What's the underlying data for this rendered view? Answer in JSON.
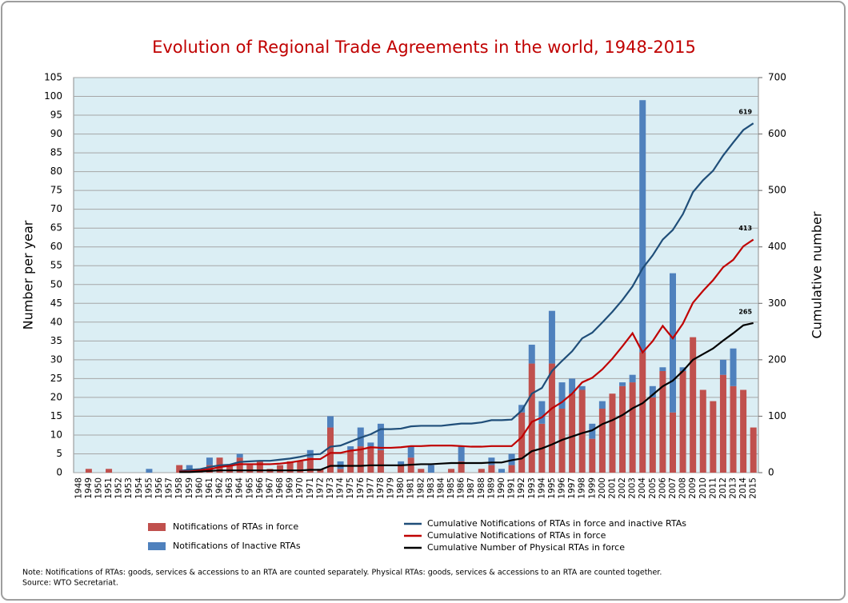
{
  "chart_data": {
    "type": "combo",
    "title": "Evolution of Regional Trade Agreements in the world, 1948-2015",
    "y_label": "Number per year",
    "y2_label": "Cumulative number",
    "categories": [
      "1948",
      "1949",
      "1950",
      "1951",
      "1952",
      "1953",
      "1954",
      "1955",
      "1956",
      "1957",
      "1958",
      "1959",
      "1960",
      "1961",
      "1962",
      "1963",
      "1964",
      "1965",
      "1966",
      "1967",
      "1968",
      "1969",
      "1970",
      "1971",
      "1972",
      "1973",
      "1974",
      "1975",
      "1976",
      "1977",
      "1978",
      "1979",
      "1980",
      "1981",
      "1982",
      "1983",
      "1984",
      "1985",
      "1986",
      "1987",
      "1988",
      "1989",
      "1990",
      "1991",
      "1992",
      "1993",
      "1994",
      "1995",
      "1996",
      "1997",
      "1998",
      "1999",
      "2000",
      "2001",
      "2002",
      "2003",
      "2004",
      "2005",
      "2006",
      "2007",
      "2008",
      "2009",
      "2010",
      "2011",
      "2012",
      "2013",
      "2014",
      "2015"
    ],
    "series": [
      {
        "name": "Notifications of RTAs in force",
        "type": "bar",
        "axis": "y",
        "color": "#c0504d",
        "values": [
          0,
          1,
          0,
          1,
          0,
          0,
          0,
          0,
          0,
          0,
          2,
          0,
          1,
          2,
          4,
          2,
          4,
          2,
          3,
          1,
          2,
          3,
          3,
          4,
          1,
          12,
          1,
          6,
          7,
          7,
          6,
          0,
          2,
          4,
          1,
          0,
          0,
          1,
          3,
          0,
          1,
          2,
          0,
          2,
          16,
          29,
          13,
          29,
          17,
          21,
          22,
          9,
          17,
          21,
          23,
          24,
          32,
          20,
          27,
          16,
          27,
          36,
          22,
          19,
          26,
          23,
          22,
          12
        ]
      },
      {
        "name": "Notifications of Inactive RTAs",
        "type": "bar",
        "axis": "y",
        "color": "#4f81bd",
        "values": [
          0,
          0,
          0,
          0,
          0,
          0,
          0,
          1,
          0,
          0,
          0,
          2,
          0,
          2,
          0,
          0,
          1,
          0,
          0,
          0,
          0,
          0,
          0,
          2,
          0,
          3,
          2,
          1,
          5,
          1,
          7,
          0,
          1,
          3,
          0,
          2,
          0,
          0,
          4,
          0,
          0,
          2,
          1,
          3,
          2,
          5,
          6,
          14,
          7,
          4,
          1,
          4,
          2,
          0,
          1,
          2,
          67,
          3,
          1,
          37,
          1,
          0,
          0,
          0,
          4,
          10,
          0,
          0
        ]
      },
      {
        "name": "Cumulative Notifications of RTAs in force and inactive RTAs",
        "type": "line",
        "axis": "y2",
        "color": "#1f4e79",
        "data_label": "last",
        "values": [
          null,
          null,
          null,
          null,
          null,
          null,
          null,
          null,
          null,
          null,
          3,
          5,
          6,
          10,
          13,
          14,
          19,
          20,
          21,
          21,
          23,
          25,
          28,
          32,
          33,
          46,
          48,
          55,
          62,
          68,
          77,
          77,
          78,
          82,
          83,
          83,
          83,
          85,
          87,
          87,
          89,
          93,
          93,
          94,
          110,
          140,
          150,
          180,
          198,
          215,
          238,
          248,
          266,
          285,
          306,
          330,
          362,
          385,
          413,
          430,
          458,
          497,
          518,
          535,
          562,
          585,
          607,
          619
        ]
      },
      {
        "name": "Cumulative Notifications of RTAs in force",
        "type": "line",
        "axis": "y2",
        "color": "#c00000",
        "data_label": "last",
        "values": [
          null,
          null,
          null,
          null,
          null,
          null,
          null,
          null,
          null,
          null,
          2,
          2,
          4,
          6,
          10,
          12,
          15,
          15,
          15,
          15,
          16,
          18,
          21,
          24,
          24,
          35,
          35,
          39,
          41,
          45,
          44,
          44,
          45,
          47,
          47,
          48,
          48,
          48,
          47,
          46,
          46,
          47,
          47,
          47,
          63,
          90,
          98,
          114,
          125,
          140,
          160,
          168,
          183,
          202,
          224,
          247,
          213,
          233,
          260,
          238,
          264,
          301,
          322,
          341,
          364,
          377,
          401,
          413
        ]
      },
      {
        "name": "Cumulative Number of Physical RTAs in force",
        "type": "line",
        "axis": "y2",
        "color": "#000000",
        "data_label": "last",
        "values": [
          null,
          null,
          null,
          null,
          null,
          null,
          null,
          null,
          null,
          null,
          1,
          1,
          2,
          3,
          4,
          4,
          4,
          4,
          4,
          4,
          4,
          4,
          4,
          5,
          5,
          12,
          12,
          12,
          12,
          13,
          13,
          13,
          13,
          14,
          15,
          15,
          16,
          17,
          17,
          17,
          17,
          18,
          18,
          22,
          25,
          38,
          43,
          50,
          58,
          64,
          70,
          75,
          86,
          93,
          102,
          114,
          123,
          138,
          153,
          163,
          180,
          200,
          210,
          220,
          234,
          247,
          261,
          265
        ]
      }
    ],
    "ylim": [
      0,
      105
    ],
    "yticks": [
      0,
      5,
      10,
      15,
      20,
      25,
      30,
      35,
      40,
      45,
      50,
      55,
      60,
      65,
      70,
      75,
      80,
      85,
      90,
      95,
      100,
      105
    ],
    "y2lim": [
      0,
      700
    ],
    "y2ticks": [
      0,
      100,
      200,
      300,
      400,
      500,
      600,
      700
    ],
    "grid": true,
    "stacked": true,
    "notes": [
      "Note: Notifications of RTAs: goods, services & accessions to an RTA are counted separately. Physical RTAs: goods, services & accessions to an RTA are counted together.",
      "Source: WTO Secretariat."
    ]
  }
}
